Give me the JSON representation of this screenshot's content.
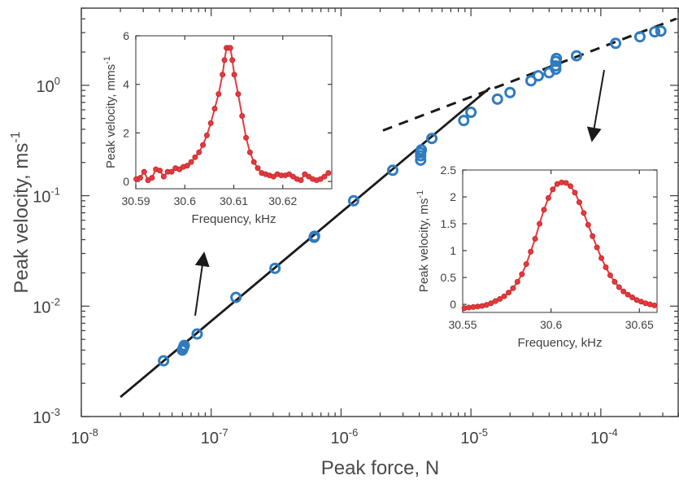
{
  "chart_data": [
    {
      "type": "scatter",
      "title": "",
      "xlabel": "Peak force, N",
      "ylabel_base": "Peak velocity, ms",
      "ylabel_sup": "-1",
      "xscale": "log",
      "yscale": "log",
      "xlim": [
        1e-08,
        0.0004
      ],
      "ylim": [
        0.001,
        5
      ],
      "xticks": [
        {
          "value": 1e-08,
          "base": "10",
          "exp": "-8"
        },
        {
          "value": 1e-07,
          "base": "10",
          "exp": "-7"
        },
        {
          "value": 1e-06,
          "base": "10",
          "exp": "-6"
        },
        {
          "value": 1e-05,
          "base": "10",
          "exp": "-5"
        },
        {
          "value": 0.0001,
          "base": "10",
          "exp": "-4"
        }
      ],
      "yticks": [
        {
          "value": 0.001,
          "base": "10",
          "exp": "-3"
        },
        {
          "value": 0.01,
          "base": "10",
          "exp": "-2"
        },
        {
          "value": 0.1,
          "base": "10",
          "exp": "-1"
        },
        {
          "value": 1,
          "base": "10",
          "exp": "0"
        }
      ],
      "grid": false,
      "points": [
        [
          4.3e-08,
          0.0032
        ],
        [
          6e-08,
          0.004
        ],
        [
          6.1e-08,
          0.0042
        ],
        [
          6.2e-08,
          0.0044
        ],
        [
          7.8e-08,
          0.0056
        ],
        [
          1.55e-07,
          0.012
        ],
        [
          3.1e-07,
          0.022
        ],
        [
          6.2e-07,
          0.042
        ],
        [
          6.25e-07,
          0.043
        ],
        [
          1.25e-06,
          0.09
        ],
        [
          2.5e-06,
          0.17
        ],
        [
          4.1e-06,
          0.21
        ],
        [
          4.1e-06,
          0.23
        ],
        [
          4.1e-06,
          0.245
        ],
        [
          4.15e-06,
          0.26
        ],
        [
          5e-06,
          0.33
        ],
        [
          8.8e-06,
          0.48
        ],
        [
          1e-05,
          0.57
        ],
        [
          1.6e-05,
          0.75
        ],
        [
          2e-05,
          0.86
        ],
        [
          2.9e-05,
          1.1
        ],
        [
          3.3e-05,
          1.22
        ],
        [
          4e-05,
          1.3
        ],
        [
          4.5e-05,
          1.4
        ],
        [
          4.5e-05,
          1.5
        ],
        [
          4.5e-05,
          1.65
        ],
        [
          4.55e-05,
          1.75
        ],
        [
          6.5e-05,
          1.85
        ],
        [
          0.00013,
          2.4
        ],
        [
          0.0002,
          2.75
        ],
        [
          0.00026,
          3.05
        ],
        [
          0.00029,
          3.1
        ]
      ],
      "fit_linear": [
        [
          2e-08,
          0.0015
        ],
        [
          1.4e-05,
          0.95
        ]
      ],
      "fit_sqrt": [
        [
          2.1e-06,
          0.39
        ],
        [
          0.00038,
          4.0
        ]
      ],
      "insets": [
        {
          "type": "line",
          "xlabel": "Frequency, kHz",
          "ylabel": "Peak velocity, mms",
          "ylabel_sup": "-1",
          "xlim": [
            30.59,
            30.63
          ],
          "ylim": [
            -0.3,
            6
          ],
          "xticks": [
            {
              "value": 30.59,
              "label": "30.59"
            },
            {
              "value": 30.6,
              "label": "30.6"
            },
            {
              "value": 30.61,
              "label": "30.61"
            },
            {
              "value": 30.62,
              "label": "30.62"
            }
          ],
          "yticks": [
            {
              "value": 0,
              "label": "0"
            },
            {
              "value": 2,
              "label": "2"
            },
            {
              "value": 4,
              "label": "4"
            },
            {
              "value": 6,
              "label": "6"
            }
          ],
          "x": [
            30.5901,
            30.5909,
            30.5917,
            30.5925,
            30.5933,
            30.5941,
            30.5949,
            30.5957,
            30.5965,
            30.5973,
            30.5981,
            30.5989,
            30.5997,
            30.6005,
            30.6013,
            30.6021,
            30.6029,
            30.6037,
            30.6045,
            30.6053,
            30.6061,
            30.6069,
            30.6077,
            30.6081,
            30.6085,
            30.6089,
            30.6093,
            30.6097,
            30.6101,
            30.6109,
            30.6117,
            30.6125,
            30.6133,
            30.6141,
            30.6149,
            30.6157,
            30.6165,
            30.6173,
            30.6181,
            30.6189,
            30.6197,
            30.6205,
            30.6213,
            30.6221,
            30.6229,
            30.6237,
            30.6245,
            30.6253,
            30.6261,
            30.6269,
            30.6277,
            30.6285,
            30.6293
          ],
          "y": [
            0.1,
            0.15,
            0.4,
            0.05,
            0.15,
            0.5,
            0.45,
            0.2,
            0.4,
            0.4,
            0.55,
            0.5,
            0.6,
            0.65,
            0.8,
            1.0,
            1.2,
            1.5,
            1.9,
            2.4,
            3.0,
            3.6,
            4.4,
            5.0,
            5.5,
            5.5,
            5.5,
            5.0,
            4.4,
            3.6,
            2.7,
            1.8,
            1.2,
            0.8,
            0.55,
            0.35,
            0.3,
            0.25,
            0.2,
            0.3,
            0.25,
            0.25,
            0.3,
            0.2,
            0.1,
            0.05,
            0.3,
            0.2,
            0.1,
            0.05,
            0.1,
            0.2,
            0.35
          ]
        },
        {
          "type": "line",
          "xlabel": "Frequency, kHz",
          "ylabel": "Peak velocity, ms",
          "ylabel_sup": "-1",
          "xlim": [
            30.55,
            30.66
          ],
          "ylim": [
            -0.15,
            2.5
          ],
          "xticks": [
            {
              "value": 30.55,
              "label": "30.55"
            },
            {
              "value": 30.6,
              "label": "30.6"
            },
            {
              "value": 30.65,
              "label": "30.65"
            }
          ],
          "yticks": [
            {
              "value": 0,
              "label": "0"
            },
            {
              "value": 0.5,
              "label": "0.5"
            },
            {
              "value": 1,
              "label": "1"
            },
            {
              "value": 1.5,
              "label": "1.5"
            },
            {
              "value": 2,
              "label": "2"
            },
            {
              "value": 2.5,
              "label": "2.5"
            }
          ],
          "x": [
            30.551,
            30.5535,
            30.556,
            30.5585,
            30.561,
            30.5635,
            30.566,
            30.5685,
            30.571,
            30.5735,
            30.576,
            30.5785,
            30.581,
            30.5835,
            30.586,
            30.5885,
            30.591,
            30.5935,
            30.596,
            30.5985,
            30.601,
            30.6035,
            30.606,
            30.6085,
            30.611,
            30.6135,
            30.616,
            30.6185,
            30.621,
            30.6235,
            30.626,
            30.6285,
            30.631,
            30.6335,
            30.636,
            30.6385,
            30.641,
            30.6435,
            30.646,
            30.6485,
            30.651,
            30.6535,
            30.656,
            30.6585
          ],
          "y": [
            -0.07,
            -0.06,
            -0.05,
            -0.04,
            -0.03,
            -0.01,
            0.02,
            0.06,
            0.1,
            0.15,
            0.22,
            0.3,
            0.42,
            0.56,
            0.75,
            0.98,
            1.22,
            1.5,
            1.76,
            1.98,
            2.14,
            2.24,
            2.27,
            2.26,
            2.2,
            2.08,
            1.9,
            1.7,
            1.48,
            1.27,
            1.06,
            0.86,
            0.69,
            0.54,
            0.42,
            0.32,
            0.24,
            0.18,
            0.13,
            0.08,
            0.05,
            0.02,
            0.0,
            -0.02
          ]
        }
      ]
    }
  ]
}
